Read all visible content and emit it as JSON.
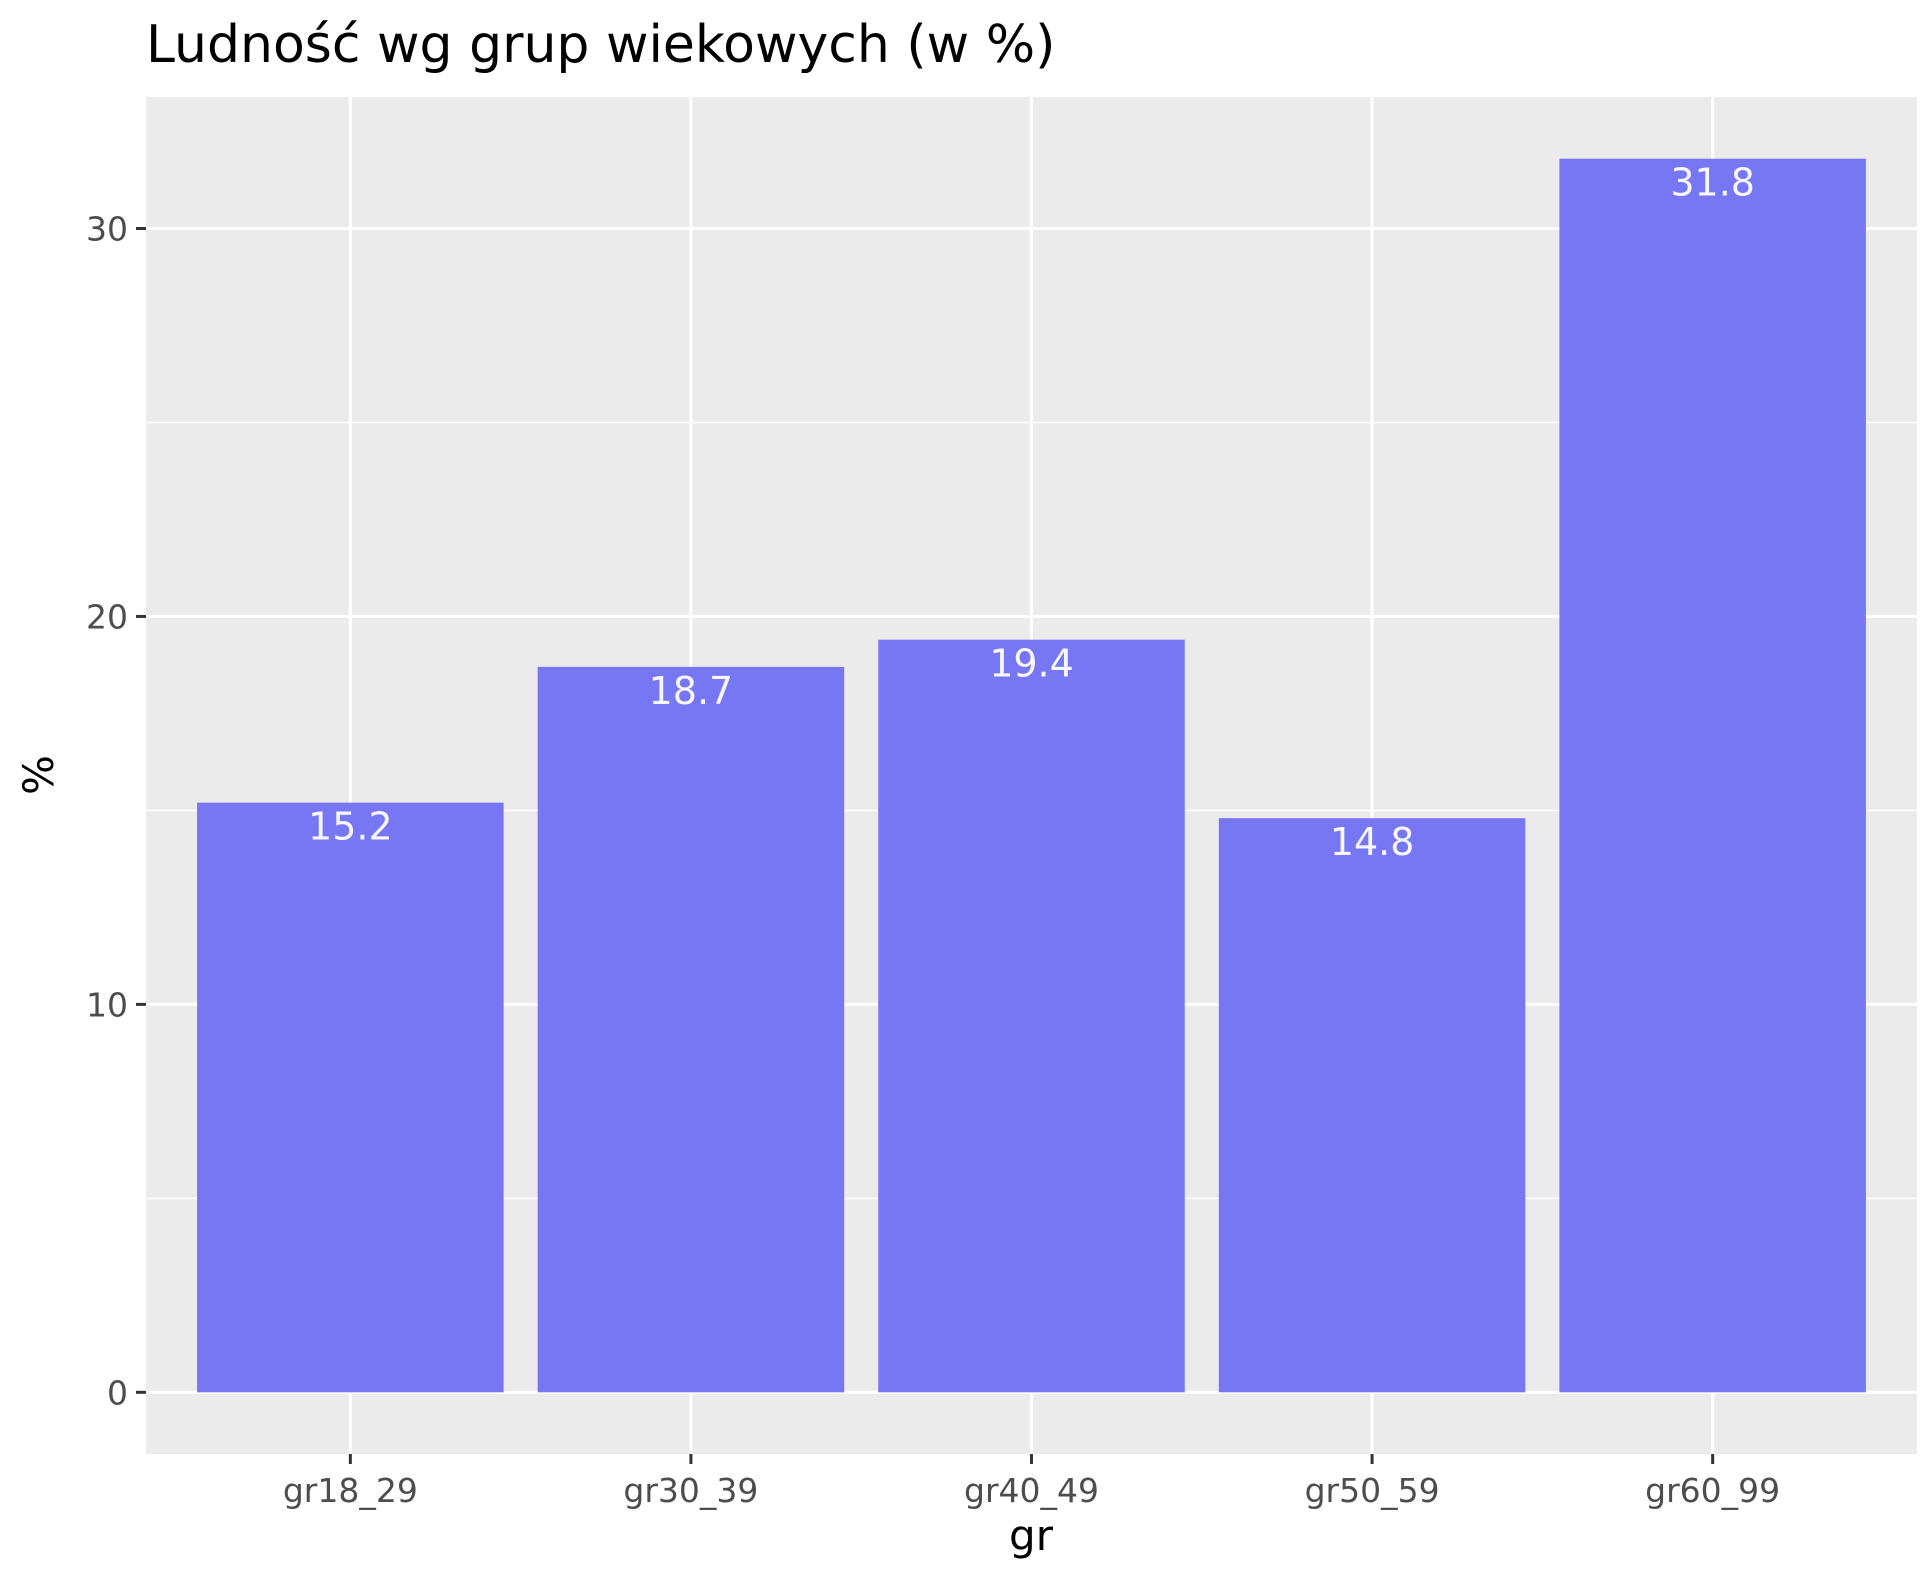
{
  "chart_data": {
    "type": "bar",
    "title": "Ludność wg grup wiekowych (w %)",
    "xlabel": "gr",
    "ylabel": "%",
    "categories": [
      "gr18_29",
      "gr30_39",
      "gr40_49",
      "gr50_59",
      "gr60_99"
    ],
    "values": [
      15.2,
      18.7,
      19.4,
      14.8,
      31.8
    ],
    "data_labels": [
      "15.2",
      "18.7",
      "19.4",
      "14.8",
      "31.8"
    ],
    "ylim": [
      -1.59,
      33.39
    ],
    "y_ticks": [
      0,
      10,
      20,
      30
    ],
    "y_tick_labels": [
      "0",
      "10",
      "20",
      "30"
    ],
    "grid": true,
    "legend": "none",
    "colors": {
      "bar": "#7777f4",
      "panel": "#ebebeb",
      "grid": "#ffffff",
      "data_label": "#f7f7ff",
      "tick": "#333333"
    }
  }
}
